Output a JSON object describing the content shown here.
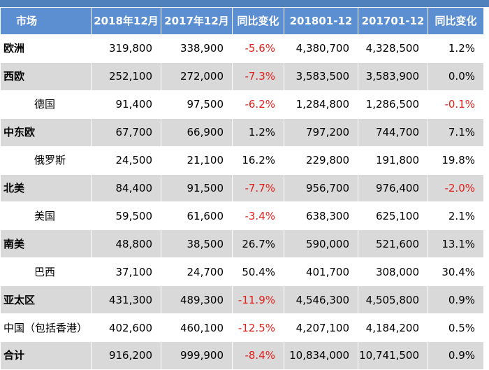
{
  "table": {
    "headers": [
      "市场",
      "2018年12月",
      "2017年12月",
      "同比变化",
      "201801-12",
      "201701-12",
      "同比变化"
    ],
    "rows": [
      {
        "market": "欧洲",
        "type": "region",
        "shade": "white",
        "cells": [
          "319,800",
          "338,900",
          "-5.6%",
          "4,380,700",
          "4,328,500",
          "1.2%"
        ],
        "neg": [
          false,
          false,
          true,
          false,
          false,
          false
        ]
      },
      {
        "market": "西欧",
        "type": "region",
        "shade": "gray",
        "cells": [
          "252,100",
          "272,000",
          "-7.3%",
          "3,583,500",
          "3,583,900",
          "0.0%"
        ],
        "neg": [
          false,
          false,
          true,
          false,
          false,
          false
        ]
      },
      {
        "market": "德国",
        "type": "country",
        "shade": "white",
        "cells": [
          "91,400",
          "97,500",
          "-6.2%",
          "1,284,800",
          "1,286,500",
          "-0.1%"
        ],
        "neg": [
          false,
          false,
          true,
          false,
          false,
          true
        ]
      },
      {
        "market": "中东欧",
        "type": "region",
        "shade": "gray",
        "cells": [
          "67,700",
          "66,900",
          "1.2%",
          "797,200",
          "744,700",
          "7.1%"
        ],
        "neg": [
          false,
          false,
          false,
          false,
          false,
          false
        ]
      },
      {
        "market": "俄罗斯",
        "type": "country",
        "shade": "white",
        "cells": [
          "24,500",
          "21,100",
          "16.2%",
          "229,800",
          "191,800",
          "19.8%"
        ],
        "neg": [
          false,
          false,
          false,
          false,
          false,
          false
        ]
      },
      {
        "market": "北美",
        "type": "region",
        "shade": "gray",
        "cells": [
          "84,400",
          "91,500",
          "-7.7%",
          "956,700",
          "976,400",
          "-2.0%"
        ],
        "neg": [
          false,
          false,
          true,
          false,
          false,
          true
        ]
      },
      {
        "market": "美国",
        "type": "country",
        "shade": "white",
        "cells": [
          "59,500",
          "61,600",
          "-3.4%",
          "638,300",
          "625,100",
          "2.1%"
        ],
        "neg": [
          false,
          false,
          true,
          false,
          false,
          false
        ]
      },
      {
        "market": "南美",
        "type": "region",
        "shade": "gray",
        "cells": [
          "48,800",
          "38,500",
          "26.7%",
          "590,000",
          "521,600",
          "13.1%"
        ],
        "neg": [
          false,
          false,
          false,
          false,
          false,
          false
        ]
      },
      {
        "market": "巴西",
        "type": "country",
        "shade": "white",
        "cells": [
          "37,100",
          "24,700",
          "50.4%",
          "401,700",
          "308,000",
          "30.4%"
        ],
        "neg": [
          false,
          false,
          false,
          false,
          false,
          false
        ]
      },
      {
        "market": "亚太区",
        "type": "region",
        "shade": "gray",
        "cells": [
          "431,300",
          "489,300",
          "-11.9%",
          "4,546,300",
          "4,505,800",
          "0.9%"
        ],
        "neg": [
          false,
          false,
          true,
          false,
          false,
          false
        ]
      },
      {
        "market": "中国（包括香港）",
        "type": "country-wide",
        "shade": "white",
        "cells": [
          "402,600",
          "460,100",
          "-12.5%",
          "4,207,100",
          "4,184,200",
          "0.5%"
        ],
        "neg": [
          false,
          false,
          true,
          false,
          false,
          false
        ]
      },
      {
        "market": "合计",
        "type": "region",
        "shade": "gray",
        "cells": [
          "916,200",
          "999,900",
          "-8.4%",
          "10,834,000",
          "10,741,500",
          "0.9%"
        ],
        "neg": [
          false,
          false,
          true,
          false,
          false,
          false
        ]
      }
    ]
  },
  "colors": {
    "header_bg": "#5b8fd1",
    "row_gray": "#d9d9d9",
    "negative": "#e0201a"
  }
}
